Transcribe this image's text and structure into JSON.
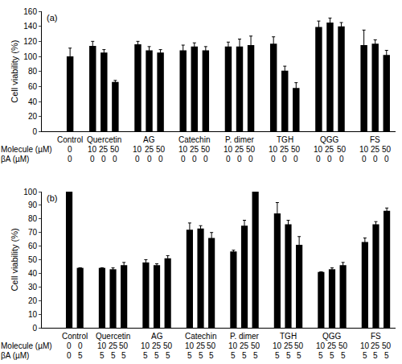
{
  "chart_data": [
    {
      "type": "bar",
      "title": "(a)",
      "y_label": "Cell viability (%)",
      "row_labels": [
        "Molecule (µM)",
        "βA (µM)"
      ],
      "color": "#000000",
      "grid": false,
      "ylim": [
        0,
        160
      ],
      "yticks": [
        0,
        20,
        40,
        60,
        80,
        100,
        120,
        140,
        160
      ],
      "groups": [
        {
          "name": "Control",
          "molecule": [
            0
          ],
          "betaA": [
            0
          ],
          "values": [
            100
          ],
          "errors": [
            11
          ]
        },
        {
          "name": "Quercetin",
          "molecule": [
            10,
            25,
            50
          ],
          "betaA": [
            0,
            0,
            0
          ],
          "values": [
            114,
            105,
            66
          ],
          "errors": [
            6,
            4,
            2
          ]
        },
        {
          "name": "AG",
          "molecule": [
            10,
            25,
            50
          ],
          "betaA": [
            0,
            0,
            0
          ],
          "values": [
            116,
            108,
            105
          ],
          "errors": [
            4,
            5,
            4
          ]
        },
        {
          "name": "Catechin",
          "molecule": [
            10,
            25,
            50
          ],
          "betaA": [
            0,
            0,
            0
          ],
          "values": [
            108,
            113,
            108
          ],
          "errors": [
            7,
            5,
            5
          ]
        },
        {
          "name": "P. dimer",
          "molecule": [
            10,
            25,
            50
          ],
          "betaA": [
            0,
            0,
            0
          ],
          "values": [
            113,
            113,
            115
          ],
          "errors": [
            6,
            10,
            12
          ]
        },
        {
          "name": "TGH",
          "molecule": [
            10,
            25,
            50
          ],
          "betaA": [
            0,
            0,
            0
          ],
          "values": [
            117,
            81,
            58
          ],
          "errors": [
            9,
            6,
            7
          ]
        },
        {
          "name": "QGG",
          "molecule": [
            10,
            25,
            50
          ],
          "betaA": [
            0,
            0,
            0
          ],
          "values": [
            139,
            145,
            140
          ],
          "errors": [
            8,
            6,
            5
          ]
        },
        {
          "name": "FS",
          "molecule": [
            10,
            25,
            50
          ],
          "betaA": [
            0,
            0,
            0
          ],
          "values": [
            115,
            117,
            102
          ],
          "errors": [
            20,
            5,
            6
          ]
        }
      ]
    },
    {
      "type": "bar",
      "title": "(b)",
      "y_label": "Cell viability (%)",
      "row_labels": [
        "Molecule (µM)",
        "βA (µM)"
      ],
      "color": "#000000",
      "grid": false,
      "ylim": [
        0,
        100
      ],
      "yticks": [
        0,
        10,
        20,
        30,
        40,
        50,
        60,
        70,
        80,
        90,
        100
      ],
      "groups": [
        {
          "name": "Control",
          "molecule": [
            0,
            0
          ],
          "betaA": [
            0,
            5
          ],
          "values": [
            100,
            44
          ],
          "errors": [
            0,
            0
          ]
        },
        {
          "name": "Quercetin",
          "molecule": [
            10,
            25,
            50
          ],
          "betaA": [
            5,
            5,
            5
          ],
          "values": [
            44,
            43,
            46
          ],
          "errors": [
            0,
            1,
            2
          ]
        },
        {
          "name": "AG",
          "molecule": [
            10,
            25,
            50
          ],
          "betaA": [
            5,
            5,
            5
          ],
          "values": [
            48,
            46,
            51
          ],
          "errors": [
            2,
            1,
            2
          ]
        },
        {
          "name": "Catechin",
          "molecule": [
            10,
            25,
            50
          ],
          "betaA": [
            5,
            5,
            5
          ],
          "values": [
            72,
            73,
            66
          ],
          "errors": [
            5,
            2,
            4
          ]
        },
        {
          "name": "P. dimer",
          "molecule": [
            10,
            25,
            50
          ],
          "betaA": [
            5,
            5,
            5
          ],
          "values": [
            56,
            75,
            100
          ],
          "errors": [
            1,
            4,
            3
          ]
        },
        {
          "name": "TGH",
          "molecule": [
            10,
            25,
            50
          ],
          "betaA": [
            5,
            5,
            5
          ],
          "values": [
            84,
            76,
            61
          ],
          "errors": [
            8,
            3,
            6
          ]
        },
        {
          "name": "QGG",
          "molecule": [
            10,
            25,
            50
          ],
          "betaA": [
            5,
            5,
            5
          ],
          "values": [
            41,
            43,
            46
          ],
          "errors": [
            0,
            1,
            2
          ]
        },
        {
          "name": "FS",
          "molecule": [
            10,
            25,
            50
          ],
          "betaA": [
            5,
            5,
            5
          ],
          "values": [
            63,
            76,
            86
          ],
          "errors": [
            3,
            2,
            2
          ]
        }
      ]
    }
  ]
}
